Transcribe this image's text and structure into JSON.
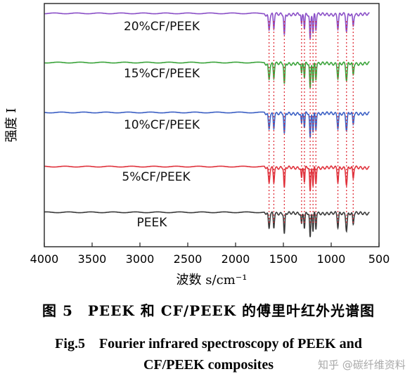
{
  "chart_data": {
    "type": "line",
    "ylabel": "强度 I",
    "xlabel": "波数 s/cm⁻¹",
    "xlim": [
      4000,
      500
    ],
    "x_ticks": [
      4000,
      3500,
      3000,
      2500,
      2000,
      1500,
      1000,
      500
    ],
    "y_ticks_shown": false,
    "grid": false,
    "legend": "inline labels above each trace",
    "marked_bands_cm-1": [
      1650,
      1600,
      1490,
      1310,
      1280,
      1220,
      1190,
      1160,
      930,
      840,
      770
    ],
    "series": [
      {
        "name": "20%CF/PEEK",
        "color": "#8a4fc7"
      },
      {
        "name": "15%CF/PEEK",
        "color": "#3aa33a"
      },
      {
        "name": "10%CF/PEEK",
        "color": "#3b5fc4"
      },
      {
        "name": "5%CF/PEEK",
        "color": "#e0323c"
      },
      {
        "name": "PEEK",
        "color": "#3a3a3a"
      }
    ],
    "band_marker_color": "#e0323c"
  },
  "captions": {
    "cn": "图 5　PEEK 和 CF/PEEK 的傅里叶红外光谱图",
    "en_line1": "Fig.5　Fourier infrared spectroscopy of PEEK and",
    "en_line2": "CF/PEEK composites"
  },
  "watermark": "知乎 @碳纤维资料"
}
